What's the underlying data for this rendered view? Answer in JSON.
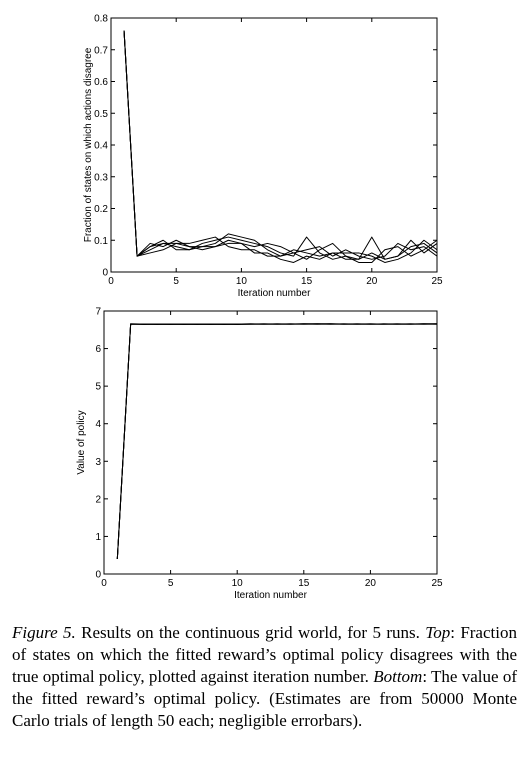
{
  "chart_data": [
    {
      "type": "line",
      "xlabel": "Iteration number",
      "ylabel": "Fraction of states on which actions disagree",
      "x": [
        1,
        2,
        3,
        4,
        5,
        6,
        7,
        8,
        9,
        10,
        11,
        12,
        13,
        14,
        15,
        16,
        17,
        18,
        19,
        20,
        21,
        22,
        23,
        24,
        25
      ],
      "xlim": [
        0,
        25
      ],
      "xticks": [
        0,
        5,
        10,
        15,
        20,
        25
      ],
      "ylim": [
        0,
        0.8
      ],
      "yticks": [
        0,
        0.1,
        0.2,
        0.3,
        0.4,
        0.5,
        0.6,
        0.7,
        0.8
      ],
      "grid": false,
      "series": [
        {
          "color": "#000000",
          "values": [
            0.76,
            0.05,
            0.08,
            0.09,
            0.08,
            0.07,
            0.09,
            0.1,
            0.11,
            0.1,
            0.09,
            0.08,
            0.06,
            0.05,
            0.11,
            0.06,
            0.04,
            0.05,
            0.04,
            0.06,
            0.04,
            0.05,
            0.08,
            0.09,
            0.06
          ]
        },
        {
          "color": "#000000",
          "values": [
            0.76,
            0.05,
            0.09,
            0.08,
            0.1,
            0.08,
            0.08,
            0.09,
            0.12,
            0.11,
            0.1,
            0.07,
            0.05,
            0.06,
            0.07,
            0.08,
            0.05,
            0.07,
            0.05,
            0.04,
            0.05,
            0.09,
            0.07,
            0.08,
            0.05
          ]
        },
        {
          "color": "#000000",
          "values": [
            0.76,
            0.05,
            0.07,
            0.09,
            0.09,
            0.08,
            0.07,
            0.08,
            0.1,
            0.09,
            0.06,
            0.06,
            0.04,
            0.03,
            0.05,
            0.04,
            0.06,
            0.04,
            0.04,
            0.11,
            0.04,
            0.05,
            0.1,
            0.06,
            0.09
          ]
        },
        {
          "color": "#000000",
          "values": [
            0.76,
            0.05,
            0.06,
            0.07,
            0.09,
            0.09,
            0.1,
            0.11,
            0.08,
            0.07,
            0.07,
            0.05,
            0.05,
            0.07,
            0.06,
            0.05,
            0.06,
            0.06,
            0.06,
            0.05,
            0.03,
            0.04,
            0.06,
            0.1,
            0.07
          ]
        },
        {
          "color": "#000000",
          "values": [
            0.76,
            0.05,
            0.08,
            0.1,
            0.07,
            0.07,
            0.08,
            0.08,
            0.09,
            0.09,
            0.08,
            0.09,
            0.08,
            0.06,
            0.04,
            0.07,
            0.09,
            0.05,
            0.03,
            0.03,
            0.07,
            0.08,
            0.05,
            0.07,
            0.1
          ]
        }
      ]
    },
    {
      "type": "line",
      "xlabel": "Iteration number",
      "ylabel": "Value of policy",
      "x": [
        1,
        2,
        3,
        4,
        5,
        6,
        7,
        8,
        9,
        10,
        11,
        12,
        13,
        14,
        15,
        16,
        17,
        18,
        19,
        20,
        21,
        22,
        23,
        24,
        25
      ],
      "xlim": [
        0,
        25
      ],
      "xticks": [
        0,
        5,
        10,
        15,
        20,
        25
      ],
      "ylim": [
        0,
        7
      ],
      "yticks": [
        0,
        1,
        2,
        3,
        4,
        5,
        6,
        7
      ],
      "grid": false,
      "series": [
        {
          "color": "#000000",
          "values": [
            0.4,
            6.65,
            6.65,
            6.65,
            6.65,
            6.65,
            6.65,
            6.64,
            6.65,
            6.65,
            6.65,
            6.65,
            6.65,
            6.65,
            6.66,
            6.66,
            6.66,
            6.65,
            6.65,
            6.66,
            6.65,
            6.65,
            6.65,
            6.66,
            6.66
          ]
        },
        {
          "color": "#000000",
          "values": [
            0.4,
            6.66,
            6.65,
            6.65,
            6.65,
            6.64,
            6.65,
            6.65,
            6.64,
            6.65,
            6.66,
            6.65,
            6.65,
            6.65,
            6.65,
            6.66,
            6.65,
            6.66,
            6.65,
            6.65,
            6.65,
            6.66,
            6.65,
            6.65,
            6.65
          ]
        },
        {
          "color": "#000000",
          "values": [
            0.4,
            6.65,
            6.65,
            6.64,
            6.65,
            6.65,
            6.65,
            6.65,
            6.65,
            6.64,
            6.65,
            6.65,
            6.66,
            6.65,
            6.65,
            6.65,
            6.65,
            6.65,
            6.66,
            6.65,
            6.66,
            6.65,
            6.65,
            6.65,
            6.66
          ]
        },
        {
          "color": "#000000",
          "values": [
            0.4,
            6.65,
            6.64,
            6.65,
            6.65,
            6.65,
            6.64,
            6.65,
            6.65,
            6.65,
            6.65,
            6.66,
            6.65,
            6.65,
            6.66,
            6.65,
            6.65,
            6.65,
            6.65,
            6.65,
            6.65,
            6.65,
            6.66,
            6.65,
            6.65
          ]
        },
        {
          "color": "#000000",
          "values": [
            0.4,
            6.65,
            6.65,
            6.65,
            6.64,
            6.65,
            6.65,
            6.65,
            6.65,
            6.65,
            6.65,
            6.65,
            6.65,
            6.66,
            6.65,
            6.65,
            6.66,
            6.65,
            6.65,
            6.65,
            6.65,
            6.65,
            6.65,
            6.66,
            6.65
          ]
        }
      ]
    }
  ],
  "caption": [
    {
      "text": "Figure 5.",
      "italic": true
    },
    {
      "text": " Results on the continuous grid world, for 5 runs. "
    },
    {
      "text": "Top",
      "italic": true
    },
    {
      "text": ": Fraction of states on which the fitted reward’s optimal policy disagrees with the true optimal policy, plotted against iteration number. "
    },
    {
      "text": "Bottom",
      "italic": true
    },
    {
      "text": ": The value of the fitted reward’s optimal policy. (Estimates are from 50000 Monte Carlo trials of length 50 each; negligible errorbars)."
    }
  ]
}
